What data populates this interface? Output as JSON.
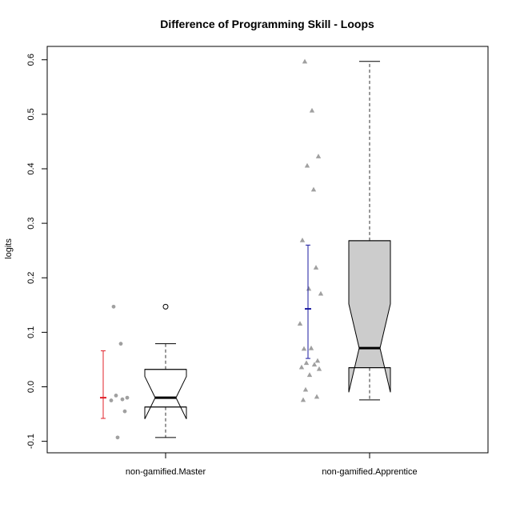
{
  "chart_data": {
    "type": "box",
    "title": "Difference of Programming Skill - Loops",
    "ylabel": "logits",
    "xlabel": "",
    "ylim": [
      -0.12,
      0.63
    ],
    "yticks": [
      "-0.1",
      "0.0",
      "0.1",
      "0.2",
      "0.3",
      "0.4",
      "0.5",
      "0.6"
    ],
    "grid": false,
    "categories": [
      "non-gamified.Master",
      "non-gamified.Apprentice"
    ],
    "groups": [
      {
        "name": "non-gamified.Master",
        "box": {
          "whisker_low": -0.093,
          "q1": -0.037,
          "median": -0.02,
          "q3": 0.032,
          "whisker_high": 0.079,
          "notch_low": -0.059,
          "notch_high": 0.019,
          "fill": "#ffffff"
        },
        "outliers": [
          0.147
        ],
        "points": [
          0.147,
          0.079,
          -0.02,
          -0.016,
          -0.023,
          -0.025,
          -0.045,
          -0.093
        ],
        "point_marker": "circle",
        "point_color": "#a0a0a0",
        "mean_ci": {
          "mean": -0.02,
          "low": -0.058,
          "high": 0.066,
          "color": "#e0202a"
        }
      },
      {
        "name": "non-gamified.Apprentice",
        "box": {
          "whisker_low": -0.024,
          "q1": 0.035,
          "median": 0.071,
          "q3": 0.268,
          "whisker_high": 0.597,
          "notch_low": -0.01,
          "notch_high": 0.152,
          "fill": "#cccccc"
        },
        "outliers": [],
        "points": [
          0.597,
          0.507,
          0.423,
          0.406,
          0.362,
          0.269,
          0.219,
          0.18,
          0.171,
          0.116,
          0.071,
          0.07,
          0.048,
          0.044,
          0.041,
          0.036,
          0.033,
          0.022,
          -0.005,
          -0.018,
          -0.024
        ],
        "point_marker": "triangle",
        "point_color": "#a0a0a0",
        "mean_ci": {
          "mean": 0.143,
          "low": 0.052,
          "high": 0.26,
          "color": "#1a1aa0"
        }
      }
    ]
  }
}
